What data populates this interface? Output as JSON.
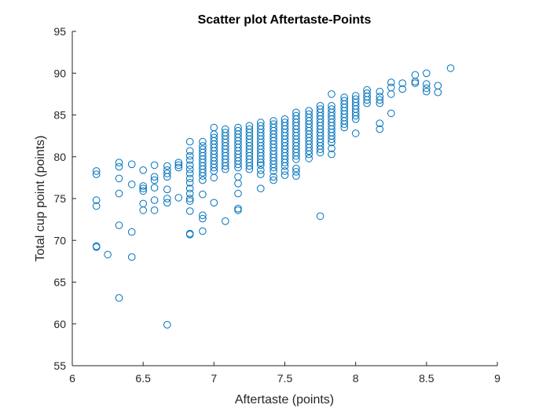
{
  "chart_data": {
    "type": "scatter",
    "title": "Scatter plot Aftertaste-Points",
    "xlabel": "Aftertaste (points)",
    "ylabel": "Total cup point (points)",
    "xlim": [
      6,
      9
    ],
    "ylim": [
      55,
      95
    ],
    "xticks": [
      "6",
      "6.5",
      "7",
      "7.5",
      "8",
      "8.5",
      "9"
    ],
    "yticks": [
      "55",
      "60",
      "65",
      "70",
      "75",
      "80",
      "85",
      "90",
      "95"
    ],
    "grid": false,
    "marker": "open-circle",
    "color": "#0072BD",
    "points": [
      [
        6.17,
        78.3
      ],
      [
        6.17,
        77.9
      ],
      [
        6.17,
        74.8
      ],
      [
        6.17,
        74.1
      ],
      [
        6.17,
        69.3
      ],
      [
        6.17,
        69.2
      ],
      [
        6.25,
        68.3
      ],
      [
        6.33,
        79.3
      ],
      [
        6.33,
        78.8
      ],
      [
        6.33,
        77.4
      ],
      [
        6.33,
        75.6
      ],
      [
        6.33,
        71.8
      ],
      [
        6.33,
        63.1
      ],
      [
        6.42,
        79.1
      ],
      [
        6.42,
        76.7
      ],
      [
        6.42,
        71.0
      ],
      [
        6.42,
        68.0
      ],
      [
        6.5,
        78.4
      ],
      [
        6.5,
        76.5
      ],
      [
        6.5,
        76.2
      ],
      [
        6.5,
        75.9
      ],
      [
        6.5,
        74.4
      ],
      [
        6.5,
        73.6
      ],
      [
        6.58,
        79.0
      ],
      [
        6.58,
        77.6
      ],
      [
        6.58,
        77.2
      ],
      [
        6.58,
        76.3
      ],
      [
        6.58,
        74.8
      ],
      [
        6.58,
        73.6
      ],
      [
        6.67,
        78.9
      ],
      [
        6.67,
        78.4
      ],
      [
        6.67,
        78.0
      ],
      [
        6.67,
        77.6
      ],
      [
        6.67,
        76.1
      ],
      [
        6.67,
        75.0
      ],
      [
        6.67,
        74.5
      ],
      [
        6.67,
        59.9
      ],
      [
        6.75,
        79.3
      ],
      [
        6.75,
        79.0
      ],
      [
        6.75,
        78.7
      ],
      [
        6.75,
        75.1
      ],
      [
        6.83,
        81.8
      ],
      [
        6.83,
        80.7
      ],
      [
        6.83,
        80.1
      ],
      [
        6.83,
        79.6
      ],
      [
        6.83,
        79.0
      ],
      [
        6.83,
        78.5
      ],
      [
        6.83,
        78.0
      ],
      [
        6.83,
        77.4
      ],
      [
        6.83,
        76.9
      ],
      [
        6.83,
        76.2
      ],
      [
        6.83,
        75.6
      ],
      [
        6.83,
        75.0
      ],
      [
        6.83,
        74.7
      ],
      [
        6.83,
        73.5
      ],
      [
        6.83,
        70.8
      ],
      [
        6.83,
        70.7
      ],
      [
        6.92,
        81.8
      ],
      [
        6.92,
        81.3
      ],
      [
        6.92,
        80.9
      ],
      [
        6.92,
        80.5
      ],
      [
        6.92,
        80.1
      ],
      [
        6.92,
        79.7
      ],
      [
        6.92,
        79.3
      ],
      [
        6.92,
        78.9
      ],
      [
        6.92,
        78.5
      ],
      [
        6.92,
        78.1
      ],
      [
        6.92,
        77.7
      ],
      [
        6.92,
        77.2
      ],
      [
        6.92,
        75.5
      ],
      [
        6.92,
        73.0
      ],
      [
        6.92,
        72.6
      ],
      [
        6.92,
        71.1
      ],
      [
        7.0,
        83.5
      ],
      [
        7.0,
        82.7
      ],
      [
        7.0,
        82.3
      ],
      [
        7.0,
        81.9
      ],
      [
        7.0,
        81.5
      ],
      [
        7.0,
        81.1
      ],
      [
        7.0,
        80.7
      ],
      [
        7.0,
        80.3
      ],
      [
        7.0,
        79.9
      ],
      [
        7.0,
        79.5
      ],
      [
        7.0,
        79.1
      ],
      [
        7.0,
        78.7
      ],
      [
        7.0,
        78.3
      ],
      [
        7.0,
        77.5
      ],
      [
        7.0,
        74.5
      ],
      [
        7.08,
        83.3
      ],
      [
        7.08,
        82.9
      ],
      [
        7.08,
        82.5
      ],
      [
        7.08,
        82.1
      ],
      [
        7.08,
        81.7
      ],
      [
        7.08,
        81.3
      ],
      [
        7.08,
        80.9
      ],
      [
        7.08,
        80.5
      ],
      [
        7.08,
        80.1
      ],
      [
        7.08,
        79.7
      ],
      [
        7.08,
        79.3
      ],
      [
        7.08,
        78.9
      ],
      [
        7.08,
        78.5
      ],
      [
        7.08,
        72.3
      ],
      [
        7.17,
        83.5
      ],
      [
        7.17,
        83.1
      ],
      [
        7.17,
        82.7
      ],
      [
        7.17,
        82.3
      ],
      [
        7.17,
        81.9
      ],
      [
        7.17,
        81.5
      ],
      [
        7.17,
        81.1
      ],
      [
        7.17,
        80.7
      ],
      [
        7.17,
        80.3
      ],
      [
        7.17,
        79.9
      ],
      [
        7.17,
        79.5
      ],
      [
        7.17,
        79.1
      ],
      [
        7.17,
        78.7
      ],
      [
        7.17,
        77.6
      ],
      [
        7.17,
        76.8
      ],
      [
        7.17,
        75.6
      ],
      [
        7.17,
        73.8
      ],
      [
        7.17,
        73.6
      ],
      [
        7.25,
        83.7
      ],
      [
        7.25,
        83.3
      ],
      [
        7.25,
        82.9
      ],
      [
        7.25,
        82.5
      ],
      [
        7.25,
        82.1
      ],
      [
        7.25,
        81.7
      ],
      [
        7.25,
        81.3
      ],
      [
        7.25,
        80.9
      ],
      [
        7.25,
        80.5
      ],
      [
        7.25,
        80.1
      ],
      [
        7.25,
        79.7
      ],
      [
        7.25,
        79.3
      ],
      [
        7.25,
        78.9
      ],
      [
        7.25,
        78.5
      ],
      [
        7.33,
        84.1
      ],
      [
        7.33,
        83.7
      ],
      [
        7.33,
        83.3
      ],
      [
        7.33,
        82.9
      ],
      [
        7.33,
        82.5
      ],
      [
        7.33,
        82.1
      ],
      [
        7.33,
        81.7
      ],
      [
        7.33,
        81.3
      ],
      [
        7.33,
        80.9
      ],
      [
        7.33,
        80.5
      ],
      [
        7.33,
        80.1
      ],
      [
        7.33,
        79.7
      ],
      [
        7.33,
        79.3
      ],
      [
        7.33,
        79.0
      ],
      [
        7.33,
        78.4
      ],
      [
        7.33,
        77.9
      ],
      [
        7.33,
        76.2
      ],
      [
        7.42,
        84.3
      ],
      [
        7.42,
        83.9
      ],
      [
        7.42,
        83.5
      ],
      [
        7.42,
        83.1
      ],
      [
        7.42,
        82.7
      ],
      [
        7.42,
        82.3
      ],
      [
        7.42,
        81.9
      ],
      [
        7.42,
        81.5
      ],
      [
        7.42,
        81.1
      ],
      [
        7.42,
        80.7
      ],
      [
        7.42,
        80.3
      ],
      [
        7.42,
        79.9
      ],
      [
        7.42,
        79.5
      ],
      [
        7.42,
        79.1
      ],
      [
        7.42,
        78.7
      ],
      [
        7.42,
        78.3
      ],
      [
        7.42,
        77.6
      ],
      [
        7.42,
        77.2
      ],
      [
        7.5,
        84.5
      ],
      [
        7.5,
        84.1
      ],
      [
        7.5,
        83.7
      ],
      [
        7.5,
        83.3
      ],
      [
        7.5,
        82.9
      ],
      [
        7.5,
        82.5
      ],
      [
        7.5,
        82.1
      ],
      [
        7.5,
        81.7
      ],
      [
        7.5,
        81.3
      ],
      [
        7.5,
        80.9
      ],
      [
        7.5,
        80.5
      ],
      [
        7.5,
        80.1
      ],
      [
        7.5,
        79.7
      ],
      [
        7.5,
        79.3
      ],
      [
        7.5,
        78.9
      ],
      [
        7.5,
        78.3
      ],
      [
        7.5,
        77.8
      ],
      [
        7.58,
        85.3
      ],
      [
        7.58,
        84.9
      ],
      [
        7.58,
        84.5
      ],
      [
        7.58,
        84.1
      ],
      [
        7.58,
        83.7
      ],
      [
        7.58,
        83.3
      ],
      [
        7.58,
        82.9
      ],
      [
        7.58,
        82.5
      ],
      [
        7.58,
        82.1
      ],
      [
        7.58,
        81.7
      ],
      [
        7.58,
        81.3
      ],
      [
        7.58,
        80.9
      ],
      [
        7.58,
        80.5
      ],
      [
        7.58,
        80.1
      ],
      [
        7.58,
        79.7
      ],
      [
        7.58,
        78.6
      ],
      [
        7.58,
        78.2
      ],
      [
        7.58,
        77.7
      ],
      [
        7.67,
        85.5
      ],
      [
        7.67,
        85.1
      ],
      [
        7.67,
        84.7
      ],
      [
        7.67,
        84.3
      ],
      [
        7.67,
        83.9
      ],
      [
        7.67,
        83.5
      ],
      [
        7.67,
        83.1
      ],
      [
        7.67,
        82.7
      ],
      [
        7.67,
        82.3
      ],
      [
        7.67,
        81.9
      ],
      [
        7.67,
        81.5
      ],
      [
        7.67,
        81.1
      ],
      [
        7.67,
        80.7
      ],
      [
        7.67,
        80.3
      ],
      [
        7.67,
        79.8
      ],
      [
        7.75,
        86.1
      ],
      [
        7.75,
        85.7
      ],
      [
        7.75,
        85.3
      ],
      [
        7.75,
        84.9
      ],
      [
        7.75,
        84.5
      ],
      [
        7.75,
        84.1
      ],
      [
        7.75,
        83.7
      ],
      [
        7.75,
        83.3
      ],
      [
        7.75,
        82.9
      ],
      [
        7.75,
        82.5
      ],
      [
        7.75,
        82.1
      ],
      [
        7.75,
        81.7
      ],
      [
        7.75,
        81.3
      ],
      [
        7.75,
        80.9
      ],
      [
        7.75,
        80.5
      ],
      [
        7.75,
        72.9
      ],
      [
        7.83,
        87.5
      ],
      [
        7.83,
        86.1
      ],
      [
        7.83,
        85.7
      ],
      [
        7.83,
        85.3
      ],
      [
        7.83,
        84.9
      ],
      [
        7.83,
        84.5
      ],
      [
        7.83,
        84.1
      ],
      [
        7.83,
        83.7
      ],
      [
        7.83,
        83.3
      ],
      [
        7.83,
        82.9
      ],
      [
        7.83,
        82.5
      ],
      [
        7.83,
        82.1
      ],
      [
        7.83,
        81.7
      ],
      [
        7.83,
        81.0
      ],
      [
        7.83,
        80.3
      ],
      [
        7.92,
        87.1
      ],
      [
        7.92,
        86.7
      ],
      [
        7.92,
        86.3
      ],
      [
        7.92,
        85.9
      ],
      [
        7.92,
        85.5
      ],
      [
        7.92,
        85.1
      ],
      [
        7.92,
        84.7
      ],
      [
        7.92,
        84.3
      ],
      [
        7.92,
        83.9
      ],
      [
        7.92,
        83.5
      ],
      [
        8.0,
        87.3
      ],
      [
        8.0,
        86.9
      ],
      [
        8.0,
        86.5
      ],
      [
        8.0,
        86.1
      ],
      [
        8.0,
        85.7
      ],
      [
        8.0,
        85.3
      ],
      [
        8.0,
        84.9
      ],
      [
        8.0,
        84.5
      ],
      [
        8.0,
        82.8
      ],
      [
        8.08,
        88.0
      ],
      [
        8.08,
        87.6
      ],
      [
        8.08,
        87.2
      ],
      [
        8.08,
        86.8
      ],
      [
        8.08,
        86.4
      ],
      [
        8.17,
        87.8
      ],
      [
        8.17,
        87.2
      ],
      [
        8.17,
        86.8
      ],
      [
        8.17,
        86.4
      ],
      [
        8.17,
        84.0
      ],
      [
        8.17,
        83.3
      ],
      [
        8.25,
        88.9
      ],
      [
        8.25,
        88.3
      ],
      [
        8.25,
        87.5
      ],
      [
        8.25,
        85.2
      ],
      [
        8.33,
        88.8
      ],
      [
        8.33,
        88.1
      ],
      [
        8.42,
        89.8
      ],
      [
        8.42,
        89.0
      ],
      [
        8.42,
        88.8
      ],
      [
        8.5,
        90.0
      ],
      [
        8.5,
        88.7
      ],
      [
        8.5,
        88.2
      ],
      [
        8.5,
        87.8
      ],
      [
        8.58,
        88.5
      ],
      [
        8.58,
        87.7
      ],
      [
        8.67,
        90.6
      ]
    ]
  }
}
